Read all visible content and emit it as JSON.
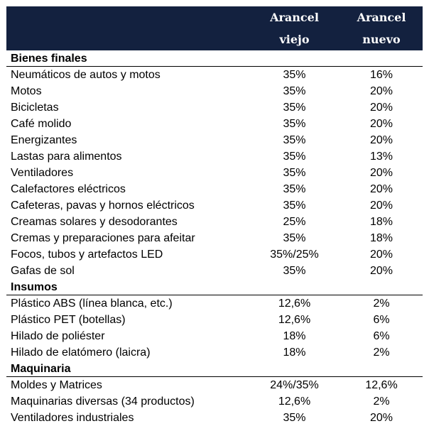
{
  "header": {
    "col_old_line1": "Arancel",
    "col_old_line2": "viejo",
    "col_new_line1": "Arancel",
    "col_new_line2": "nuevo"
  },
  "sections": [
    {
      "title": "Bienes finales",
      "rows": [
        {
          "name": "Neumáticos de autos y motos",
          "old": "35%",
          "new": "16%"
        },
        {
          "name": "Motos",
          "old": "35%",
          "new": "20%"
        },
        {
          "name": "Bicicletas",
          "old": "35%",
          "new": "20%"
        },
        {
          "name": "Café molido",
          "old": "35%",
          "new": "20%"
        },
        {
          "name": "Energizantes",
          "old": "35%",
          "new": "20%"
        },
        {
          "name": "Lastas para alimentos",
          "old": "35%",
          "new": "13%"
        },
        {
          "name": "Ventiladores",
          "old": "35%",
          "new": "20%"
        },
        {
          "name": "Calefactores eléctricos",
          "old": "35%",
          "new": "20%"
        },
        {
          "name": "Cafeteras, pavas y hornos eléctricos",
          "old": "35%",
          "new": "20%"
        },
        {
          "name": "Creamas solares y desodorantes",
          "old": "25%",
          "new": "18%"
        },
        {
          "name": "Cremas y preparaciones para afeitar",
          "old": "35%",
          "new": "18%"
        },
        {
          "name": "Focos, tubos y artefactos LED",
          "old": "35%/25%",
          "new": "20%"
        },
        {
          "name": "Gafas de sol",
          "old": "35%",
          "new": "20%"
        }
      ]
    },
    {
      "title": "Insumos",
      "rows": [
        {
          "name": "Plástico ABS (línea blanca, etc.)",
          "old": "12,6%",
          "new": "2%"
        },
        {
          "name": "Plástico PET (botellas)",
          "old": "12,6%",
          "new": "6%"
        },
        {
          "name": "Hilado de poliéster",
          "old": "18%",
          "new": "6%"
        },
        {
          "name": "Hilado de elatómero (laicra)",
          "old": "18%",
          "new": "2%"
        }
      ]
    },
    {
      "title": "Maquinaria",
      "rows": [
        {
          "name": "Moldes y Matrices",
          "old": "24%/35%",
          "new": "12,6%"
        },
        {
          "name": "Maquinarias diversas (34 productos)",
          "old": "12,6%",
          "new": "2%"
        },
        {
          "name": "Ventiladores industriales",
          "old": "35%",
          "new": "20%"
        }
      ]
    }
  ],
  "colors": {
    "header_bg": "#13213f",
    "header_text": "#ffffff",
    "body_text": "#000000"
  }
}
